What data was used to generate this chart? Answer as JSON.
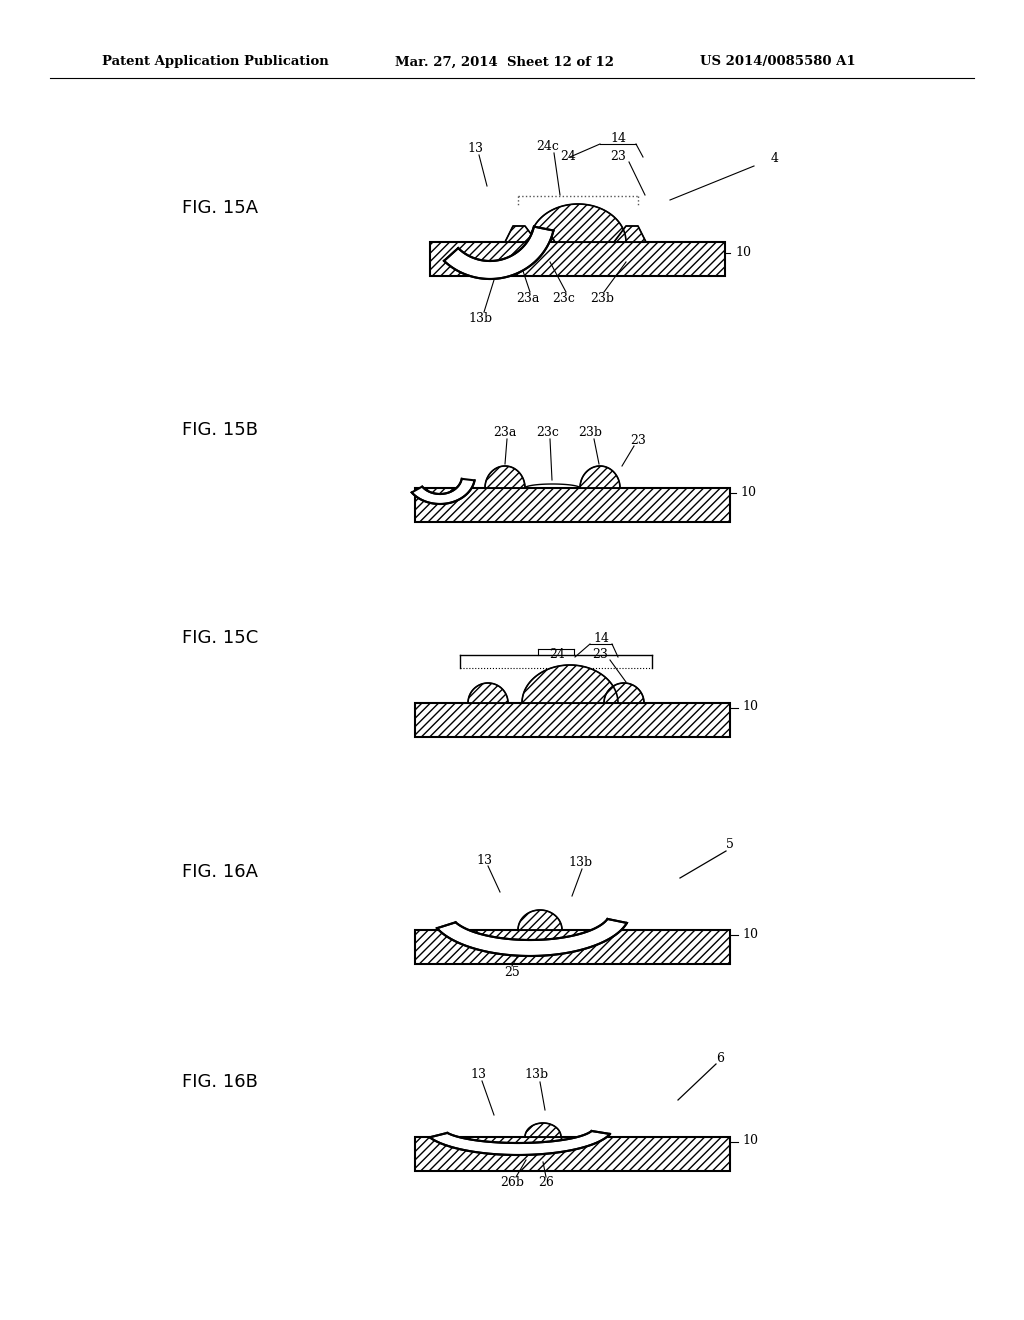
{
  "bg_color": "#ffffff",
  "header1": "Patent Application Publication",
  "header2": "Mar. 27, 2014  Sheet 12 of 12",
  "header3": "US 2014/0085580 A1"
}
